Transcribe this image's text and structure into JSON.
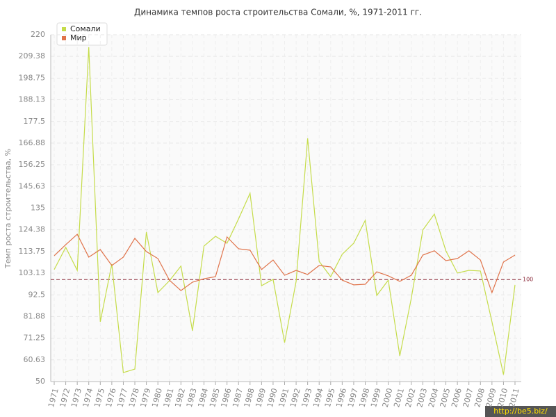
{
  "chart_data": {
    "type": "line",
    "title": "Динамика темпов роста строительства Сомали, %, 1971-2011 гг.",
    "y_label": "Темп роста строительства, %",
    "categories": [
      "1971",
      "1972",
      "1973",
      "1974",
      "1975",
      "1976",
      "1977",
      "1978",
      "1979",
      "1980",
      "1981",
      "1982",
      "1983",
      "1984",
      "1985",
      "1986",
      "1987",
      "1988",
      "1989",
      "1990",
      "1991",
      "1992",
      "1993",
      "1994",
      "1995",
      "1996",
      "1997",
      "1998",
      "1999",
      "2000",
      "2001",
      "2002",
      "2003",
      "2004",
      "2005",
      "2006",
      "2007",
      "2008",
      "2009",
      "2010",
      "2011"
    ],
    "series": [
      {
        "name": "Сомали",
        "color": "#c5dc4a",
        "values": [
          104.9,
          115.8,
          104.5,
          213.9,
          79.3,
          107.6,
          54.4,
          56.1,
          123.3,
          93.6,
          99.4,
          106.6,
          74.9,
          116.4,
          121.2,
          117.8,
          129.7,
          142.3,
          97.0,
          100.1,
          69.1,
          99.1,
          169.2,
          108.9,
          101.4,
          112.4,
          117.8,
          129.0,
          92.2,
          99.7,
          62.6,
          90.9,
          124.3,
          132.1,
          114.1,
          103.2,
          104.5,
          104.2,
          79.3,
          53.4,
          97.4
        ]
      },
      {
        "name": "Мир",
        "color": "#e0734a",
        "values": [
          111.7,
          117.1,
          122.2,
          111.0,
          114.7,
          106.9,
          111.0,
          120.2,
          113.7,
          110.3,
          99.7,
          94.6,
          98.7,
          100.4,
          101.4,
          120.9,
          115.1,
          114.4,
          104.9,
          109.6,
          102.1,
          104.5,
          102.5,
          106.9,
          106.2,
          99.7,
          97.4,
          97.7,
          103.8,
          101.8,
          99.1,
          102.1,
          112.0,
          114.1,
          109.3,
          110.3,
          114.1,
          109.6,
          93.6,
          108.6,
          112.0
        ]
      }
    ],
    "ylim": [
      50,
      220
    ],
    "yticks": [
      50,
      60.63,
      71.25,
      81.88,
      92.5,
      103.13,
      113.75,
      124.38,
      135,
      145.63,
      156.25,
      166.88,
      177.5,
      188.13,
      198.75,
      209.38,
      220
    ],
    "grid": true,
    "reference_line": 100,
    "reference_color": "#8b2a3a",
    "legend": "top-left",
    "watermark": "http://be5.biz/"
  }
}
